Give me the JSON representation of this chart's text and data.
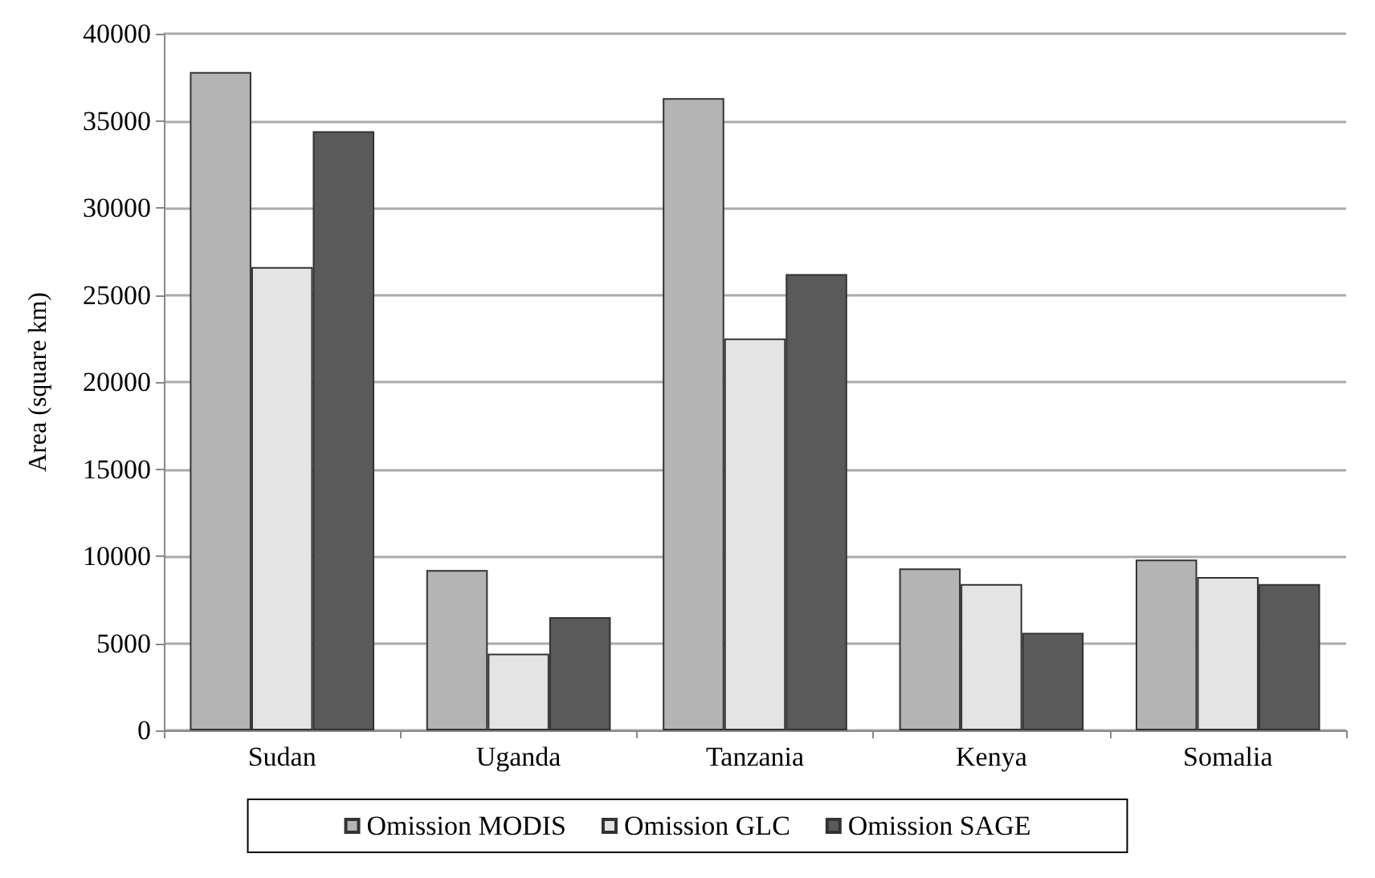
{
  "chart_data": {
    "type": "bar",
    "ylabel": "Area (square km)",
    "categories": [
      "Sudan",
      "Uganda",
      "Tanzania",
      "Kenya",
      "Somalia"
    ],
    "series": [
      {
        "name": "Omission MODIS",
        "color": "#b4b4b4",
        "values": [
          37800,
          9200,
          36300,
          9300,
          9800
        ]
      },
      {
        "name": "Omission GLC",
        "color": "#e4e4e4",
        "values": [
          26600,
          4400,
          22500,
          8400,
          8800
        ]
      },
      {
        "name": "Omission SAGE",
        "color": "#5a5a5a",
        "values": [
          34400,
          6500,
          26200,
          5600,
          8400
        ]
      }
    ],
    "ylim": [
      0,
      40000
    ],
    "yticks": [
      0,
      5000,
      10000,
      15000,
      20000,
      25000,
      30000,
      35000,
      40000
    ],
    "grid": "y",
    "legend": "bottom"
  }
}
